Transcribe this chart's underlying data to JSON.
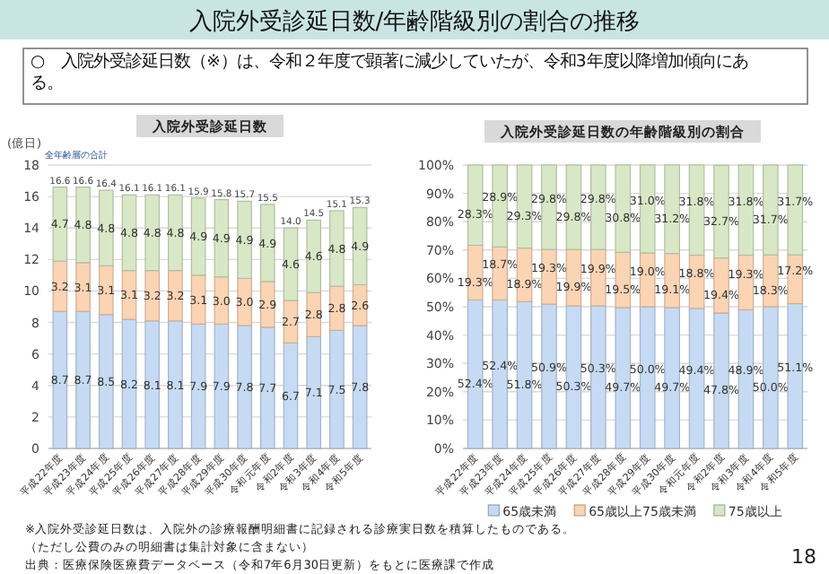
{
  "chart_data": [
    {
      "type": "bar",
      "title": "入院外受診延日数",
      "ylabel": "(億日)",
      "stacked": true,
      "grid": "y",
      "categories": [
        "平成22年度",
        "平成23年度",
        "平成24年度",
        "平成25年度",
        "平成26年度",
        "平成27年度",
        "平成28年度",
        "平成29年度",
        "平成30年度",
        "令和元年度",
        "令和2年度",
        "令和3年度",
        "令和4年度",
        "令和5年度"
      ],
      "ylim": [
        0,
        18
      ],
      "yticks": [
        0,
        2,
        4,
        6,
        8,
        10,
        12,
        14,
        16,
        18
      ],
      "series": [
        {
          "color": "#c6dbf3",
          "values": [
            8.7,
            8.7,
            8.5,
            8.2,
            8.1,
            8.1,
            7.9,
            7.9,
            7.8,
            7.7,
            6.7,
            7.1,
            7.5,
            7.8
          ],
          "value_labels": [
            "8.7",
            "8.7",
            "8.5",
            "8.2",
            "8.1",
            "8.1",
            "7.9",
            "7.9",
            "7.8",
            "7.7",
            "6.7",
            "7.1",
            "7.5",
            "7.8"
          ]
        },
        {
          "color": "#fbd4b4",
          "values": [
            3.2,
            3.1,
            3.1,
            3.1,
            3.2,
            3.2,
            3.1,
            3.0,
            3.0,
            2.9,
            2.7,
            2.8,
            2.8,
            2.6
          ],
          "value_labels": [
            "3.2",
            "3.1",
            "3.1",
            "3.1",
            "3.2",
            "3.2",
            "3.1",
            "3.0",
            "3.0",
            "2.9",
            "2.7",
            "2.8",
            "2.8",
            "2.6"
          ]
        },
        {
          "color": "#d8e8c6",
          "values": [
            4.7,
            4.8,
            4.8,
            4.8,
            4.8,
            4.8,
            4.9,
            4.9,
            4.9,
            4.9,
            4.6,
            4.6,
            4.8,
            4.9
          ],
          "value_labels": [
            "4.7",
            "4.8",
            "4.8",
            "4.8",
            "4.8",
            "4.8",
            "4.9",
            "4.9",
            "4.9",
            "4.9",
            "4.6",
            "4.6",
            "4.8",
            "4.9"
          ]
        }
      ],
      "totals": [
        "16.6",
        "16.6",
        "16.4",
        "16.1",
        "16.1",
        "16.1",
        "15.9",
        "15.8",
        "15.7",
        "15.5",
        "14.0",
        "14.5",
        "15.1",
        "15.3"
      ],
      "annotations": [
        "入院外受診延日数/年齢階級別の割合の推移",
        "○　入院外受診延日数（※）は、令和２年度で顕著に減少していたが、令和3年度以降増加傾向にある。",
        "全年齢層の合計",
        "※入院外受診延日数は、入院外の診療報酬明細書に記録される診療実日数を積算したものである。",
        "（ただし公費のみの明細書は集計対象に含まない）",
        "出典：医療保険医療費データベース（令和7年6月30日更新）をもとに医療課で作成",
        "18"
      ]
    },
    {
      "type": "bar",
      "title": "入院外受診延日数の年齢階級別の割合",
      "stacked": true,
      "grid": "y",
      "legend": "bottom",
      "categories": [
        "平成22年度",
        "平成23年度",
        "平成24年度",
        "平成25年度",
        "平成26年度",
        "平成27年度",
        "平成28年度",
        "平成29年度",
        "平成30年度",
        "令和元年度",
        "令和2年度",
        "令和3年度",
        "令和4年度",
        "令和5年度"
      ],
      "ylim": [
        0,
        100
      ],
      "yticks": [
        {
          "value": 0,
          "label": "0%"
        },
        {
          "value": 10,
          "label": "10%"
        },
        {
          "value": 20,
          "label": "20%"
        },
        {
          "value": 30,
          "label": "30%"
        },
        {
          "value": 40,
          "label": "40%"
        },
        {
          "value": 50,
          "label": "50%"
        },
        {
          "value": 60,
          "label": "60%"
        },
        {
          "value": 70,
          "label": "70%"
        },
        {
          "value": 80,
          "label": "80%"
        },
        {
          "value": 90,
          "label": "90%"
        },
        {
          "value": 100,
          "label": "100%"
        }
      ],
      "series": [
        {
          "name": "65歳未満",
          "color": "#c6dbf3",
          "values": [
            52.4,
            52.4,
            51.8,
            50.9,
            50.3,
            50.3,
            49.7,
            50.0,
            49.7,
            49.4,
            47.8,
            48.9,
            50.0,
            51.1
          ],
          "value_labels": [
            "52.4%",
            "52.4%",
            "51.8%",
            "50.9%",
            "50.3%",
            "50.3%",
            "49.7%",
            "50.0%",
            "49.7%",
            "49.4%",
            "47.8%",
            "48.9%",
            "50.0%",
            "51.1%"
          ]
        },
        {
          "name": "65歳以上75歳未満",
          "color": "#fbd4b4",
          "values": [
            19.3,
            18.7,
            18.9,
            19.3,
            19.9,
            19.9,
            19.5,
            19.0,
            19.1,
            18.8,
            19.4,
            19.3,
            18.3,
            17.2
          ],
          "value_labels": [
            "19.3%",
            "18.7%",
            "18.9%",
            "19.3%",
            "19.9%",
            "19.9%",
            "19.5%",
            "19.0%",
            "19.1%",
            "18.8%",
            "19.4%",
            "19.3%",
            "18.3%",
            "17.2%"
          ]
        },
        {
          "name": "75歳以上",
          "color": "#d8e8c6",
          "values": [
            28.3,
            28.9,
            29.3,
            29.8,
            29.8,
            29.8,
            30.8,
            31.0,
            31.2,
            31.8,
            32.7,
            31.8,
            31.7,
            31.7
          ],
          "value_labels": [
            "28.3%",
            "28.9%",
            "29.3%",
            "29.8%",
            "29.8%",
            "29.8%",
            "30.8%",
            "31.0%",
            "31.2%",
            "31.8%",
            "32.7%",
            "31.8%",
            "31.7%",
            "31.7%"
          ]
        }
      ]
    }
  ]
}
